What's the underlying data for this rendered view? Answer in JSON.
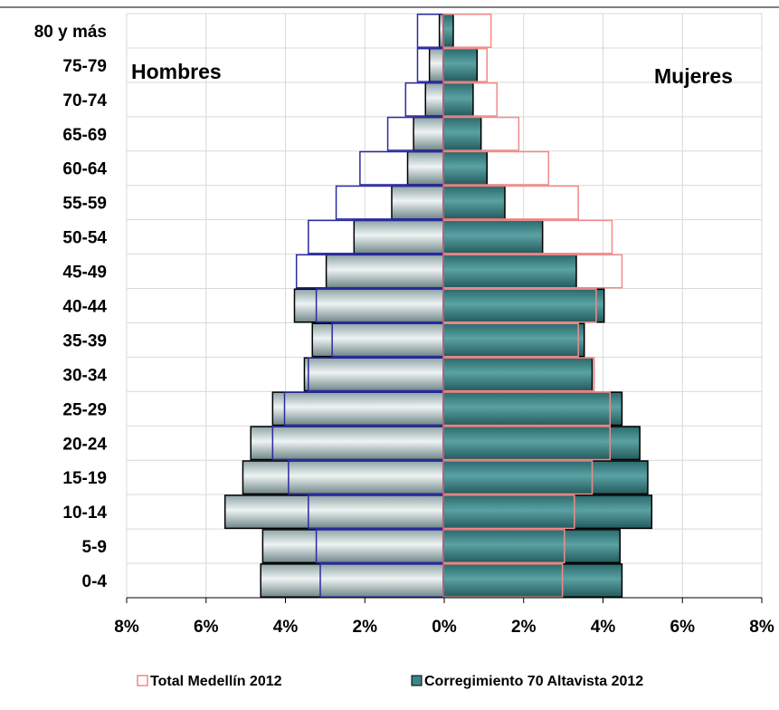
{
  "chart_data": {
    "type": "bar",
    "orientation": "horizontal",
    "layout": "population-pyramid",
    "categories": [
      "0-4",
      "5-9",
      "10-14",
      "15-19",
      "20-24",
      "25-29",
      "30-34",
      "35-39",
      "40-44",
      "45-49",
      "50-54",
      "55-59",
      "60-64",
      "65-69",
      "70-74",
      "75-79",
      "80 y más"
    ],
    "xlim": [
      -8,
      8
    ],
    "xticks": [
      "8%",
      "6%",
      "4%",
      "2%",
      "0%",
      "2%",
      "4%",
      "6%",
      "8%"
    ],
    "grid": true,
    "legend_position": "bottom",
    "side_labels": {
      "left": "Hombres",
      "right": "Mujeres"
    },
    "series": [
      {
        "name": "Total Medellín 2012",
        "legend_label": "Total Medellín 2012",
        "style": "outline",
        "male": [
          3.1,
          3.2,
          3.4,
          3.9,
          4.3,
          4.0,
          3.4,
          2.8,
          3.2,
          3.7,
          3.4,
          2.7,
          2.1,
          1.4,
          0.95,
          0.65,
          0.65
        ],
        "female": [
          3.0,
          3.05,
          3.3,
          3.75,
          4.2,
          4.2,
          3.8,
          3.4,
          3.85,
          4.5,
          4.25,
          3.4,
          2.65,
          1.9,
          1.35,
          1.1,
          1.2
        ]
      },
      {
        "name": "Corregimiento 70 Altavista 2012",
        "legend_label": "Corregimiento 70 Altavista 2012",
        "style": "filled",
        "male": [
          4.6,
          4.55,
          5.5,
          5.05,
          4.85,
          4.3,
          3.5,
          3.3,
          3.75,
          2.95,
          2.25,
          1.3,
          0.9,
          0.75,
          0.45,
          0.35,
          0.1
        ],
        "female": [
          4.5,
          4.45,
          5.25,
          5.15,
          4.95,
          4.5,
          3.75,
          3.55,
          4.05,
          3.35,
          2.5,
          1.55,
          1.1,
          0.95,
          0.75,
          0.85,
          0.25
        ]
      }
    ]
  },
  "colors": {
    "male_fill": "#c8d5d6",
    "female_fill": "#3d8587",
    "outline_male": "#2a2aa0",
    "outline_female": "#f08a8a",
    "zero_line": "#c0607a",
    "grid": "#d9d9d9"
  }
}
